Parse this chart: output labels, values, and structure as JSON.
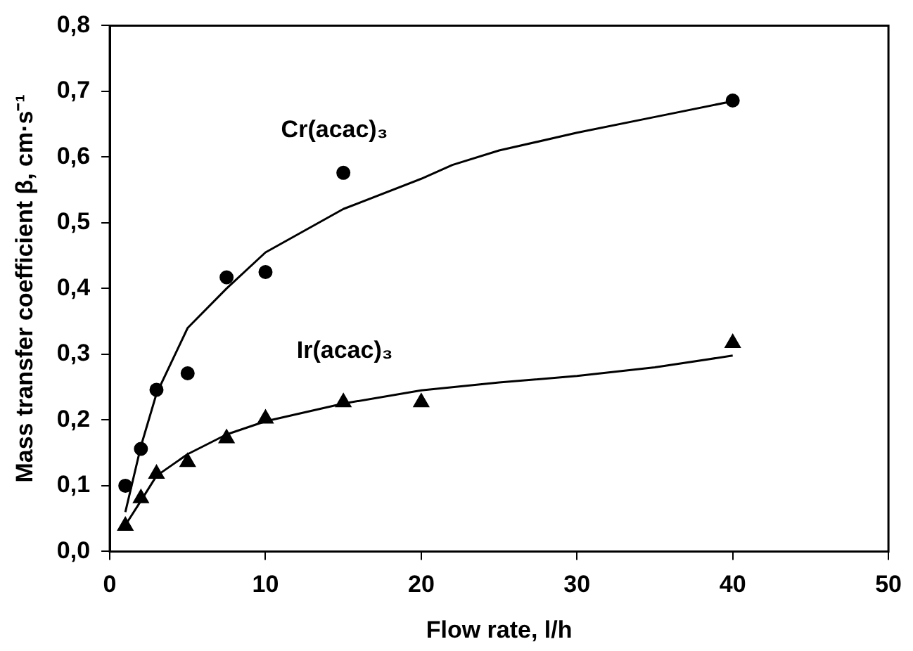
{
  "chart_data": {
    "type": "scatter",
    "xlabel": "Flow rate, l/h",
    "ylabel": "Mass transfer coefficient β, cm·s⁻¹",
    "xlim": [
      0,
      50
    ],
    "xticks": [
      0,
      10,
      20,
      30,
      40,
      50
    ],
    "ylim": [
      0,
      0.8
    ],
    "yticks": [
      {
        "value": 0,
        "label": "0,0"
      },
      {
        "value": 0.1,
        "label": "0,1"
      },
      {
        "value": 0.2,
        "label": "0,2"
      },
      {
        "value": 0.3,
        "label": "0,3"
      },
      {
        "value": 0.4,
        "label": "0,4"
      },
      {
        "value": 0.5,
        "label": "0,5"
      },
      {
        "value": 0.6,
        "label": "0,6"
      },
      {
        "value": 0.7,
        "label": "0,7"
      },
      {
        "value": 0.8,
        "label": "0,8"
      }
    ],
    "grid": false,
    "legend": false,
    "series": [
      {
        "name": "Cr(acac)₃",
        "marker": "circle",
        "color": "#000000",
        "x": [
          1,
          2,
          3,
          5,
          7.5,
          10,
          15,
          40
        ],
        "values": [
          0.1,
          0.156,
          0.246,
          0.271,
          0.417,
          0.425,
          0.576,
          0.686
        ]
      },
      {
        "name": "Ir(acac)₃",
        "marker": "triangle",
        "color": "#000000",
        "x": [
          1,
          2,
          3,
          5,
          7.5,
          10,
          15,
          20,
          40
        ],
        "values": [
          0.039,
          0.081,
          0.118,
          0.136,
          0.172,
          0.202,
          0.227,
          0.227,
          0.317
        ]
      },
      {
        "type": "line",
        "marker": "none",
        "line_style": "solid",
        "color": "#000000",
        "x": [
          1,
          2,
          3,
          5,
          7.5,
          10,
          15,
          20,
          22,
          25,
          30,
          35,
          40
        ],
        "values": [
          0.06,
          0.16,
          0.24,
          0.34,
          0.4,
          0.455,
          0.521,
          0.567,
          0.588,
          0.61,
          0.637,
          0.661,
          0.685
        ]
      },
      {
        "type": "line",
        "marker": "none",
        "line_style": "solid",
        "color": "#000000",
        "x": [
          1,
          2,
          3,
          5,
          7.5,
          10,
          15,
          20,
          25,
          30,
          35,
          40
        ],
        "values": [
          0.04,
          0.077,
          0.115,
          0.148,
          0.178,
          0.198,
          0.225,
          0.245,
          0.257,
          0.267,
          0.28,
          0.298
        ]
      }
    ]
  }
}
